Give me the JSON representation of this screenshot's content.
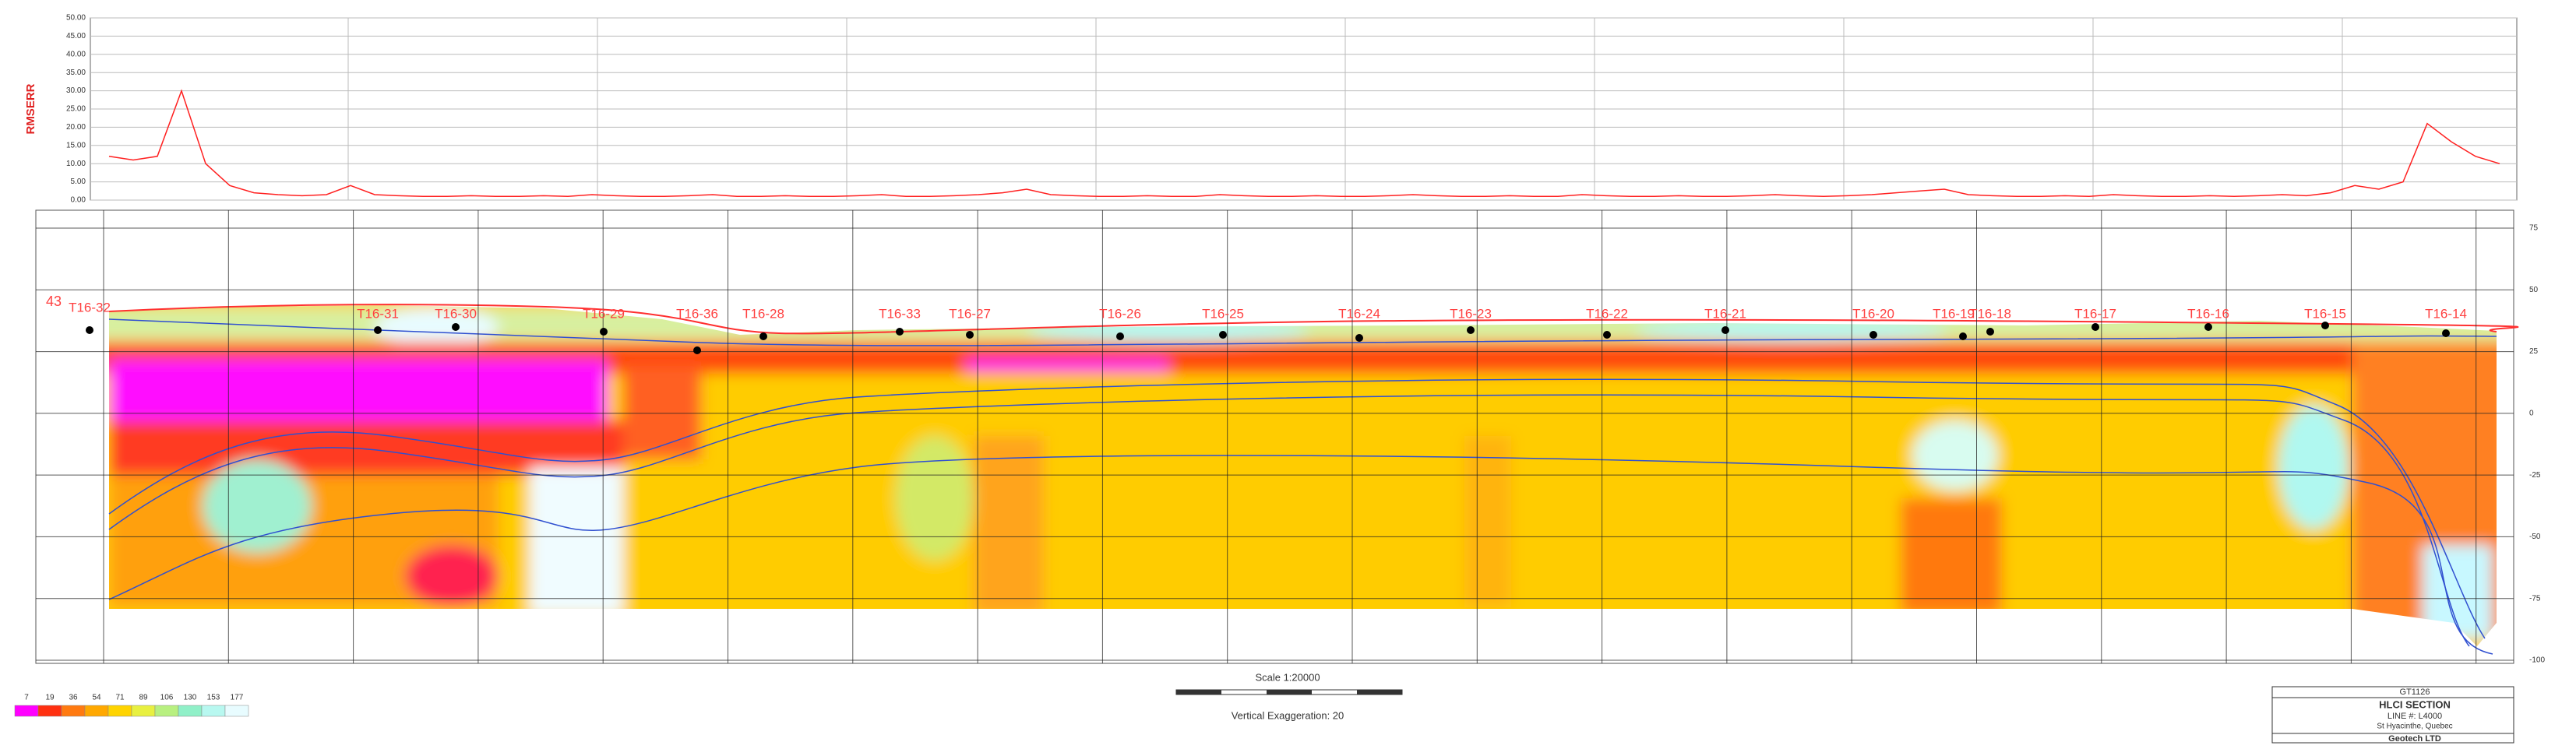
{
  "chart_data": [
    {
      "type": "line",
      "y_label": "RMSERR",
      "color": "#ff2020",
      "values": [
        12,
        11,
        12,
        30,
        10,
        4,
        2,
        1.5,
        1.2,
        1.5,
        4,
        1.5,
        1.2,
        1,
        1,
        1.2,
        1,
        1,
        1.2,
        1,
        1.5,
        1.2,
        1,
        1,
        1.2,
        1.5,
        1,
        1,
        1.2,
        1,
        1,
        1.2,
        1.5,
        1,
        1,
        1.2,
        1.5,
        2,
        3,
        1.5,
        1.2,
        1,
        1,
        1.2,
        1,
        1,
        1.5,
        1.2,
        1,
        1,
        1.2,
        1,
        1,
        1.2,
        1.5,
        1.2,
        1,
        1,
        1.2,
        1,
        1,
        1.5,
        1.2,
        1,
        1,
        1.2,
        1,
        1,
        1.2,
        1.5,
        1.2,
        1,
        1.2,
        1.5,
        2,
        2.5,
        3,
        1.5,
        1.2,
        1,
        1,
        1.2,
        1,
        1.5,
        1.2,
        1,
        1,
        1.2,
        1,
        1.2,
        1.5,
        1.2,
        2,
        4,
        3,
        5,
        21,
        16,
        12,
        10
      ],
      "ylim": [
        0,
        50
      ],
      "yticks": [
        {
          "value": 0,
          "label": "0.00"
        },
        {
          "value": 5,
          "label": "5.00"
        },
        {
          "value": 10,
          "label": "10.00"
        },
        {
          "value": 15,
          "label": "15.00"
        },
        {
          "value": 20,
          "label": "20.00"
        },
        {
          "value": 25,
          "label": "25.00"
        },
        {
          "value": 30,
          "label": "30.00"
        },
        {
          "value": 35,
          "label": "35.00"
        },
        {
          "value": 40,
          "label": "40.00"
        },
        {
          "value": 45,
          "label": "45.00"
        },
        {
          "value": 50,
          "label": "50.00"
        }
      ],
      "grid": true
    },
    {
      "type": "section",
      "left_label": "43",
      "stations": [
        "T16-32",
        "T16-31",
        "T16-30",
        "T16-29",
        "T16-36",
        "T16-28",
        "T16-33",
        "T16-27",
        "T16-26",
        "T16-25",
        "T16-24",
        "T16-23",
        "T16-22",
        "T16-21",
        "T16-20",
        "T16-19",
        "T16-18",
        "T16-17",
        "T16-16",
        "T16-15",
        "T16-14"
      ],
      "ylim": [
        -100,
        75
      ],
      "yticks": [
        75,
        50,
        25,
        0,
        -25,
        -50,
        -75,
        -100
      ],
      "grid": true,
      "legend": {
        "values": [
          7,
          19,
          36,
          54,
          71,
          89,
          106,
          130,
          153,
          177
        ],
        "colors": [
          "#ff00ff",
          "#ff3010",
          "#ff7a10",
          "#ffa800",
          "#ffd400",
          "#e8f040",
          "#b8f080",
          "#90f0c8",
          "#b8f8f0",
          "#e8fcff"
        ]
      },
      "scale": "Scale 1:20000",
      "vertical_exaggeration": "Vertical Exaggeration: 20"
    }
  ],
  "title_block": {
    "project": "GT1126",
    "title": "HLCI SECTION",
    "line": "LINE #: L4000",
    "place": "St Hyacinthe, Quebec",
    "company": "Geotech LTD"
  }
}
